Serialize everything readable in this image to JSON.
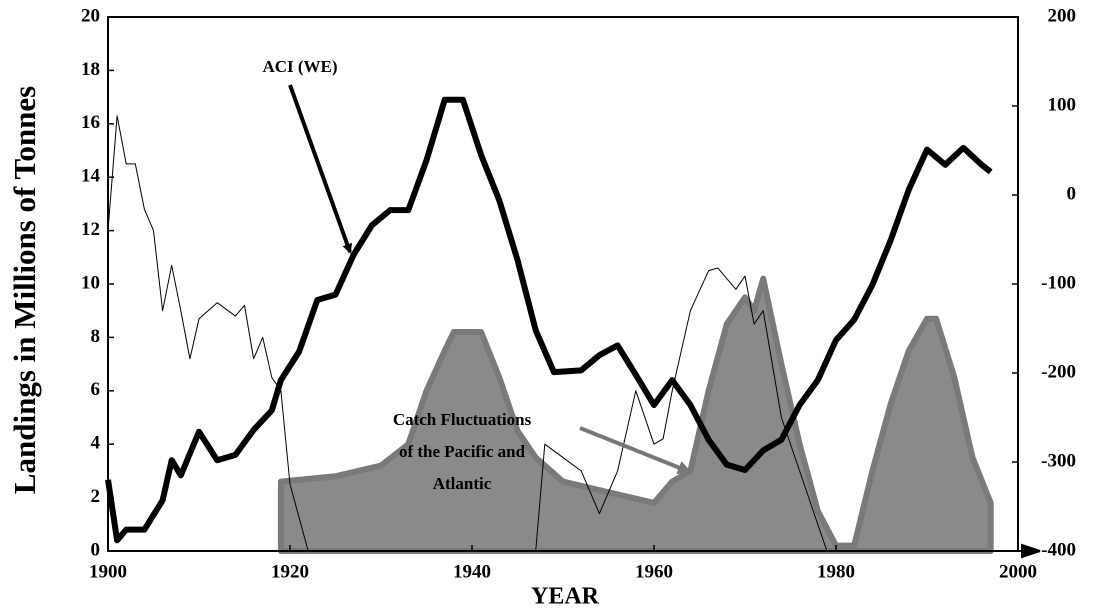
{
  "chart_data": {
    "type": "line",
    "xlabel": "YEAR",
    "ylabel": "Landings in Millions of Tonnes",
    "xlim": [
      1900,
      2000
    ],
    "xticks": [
      1900,
      1920,
      1940,
      1960,
      1980,
      2000
    ],
    "ylim": [
      0,
      20
    ],
    "yticks": [
      0,
      2,
      4,
      6,
      8,
      10,
      12,
      14,
      16,
      18,
      20
    ],
    "y2lim": [
      -400,
      200
    ],
    "y2ticks": [
      200,
      100,
      0,
      -100,
      -200,
      -300,
      -400
    ],
    "grid": false,
    "annotations": [
      [
        "ACI (WE)"
      ],
      [
        "Catch Fluctuations",
        "of the Pacific and",
        "Atlantic"
      ]
    ],
    "series": [
      {
        "type": "area",
        "color": "#8a8a8a",
        "x": [
          1919,
          1925,
          1930,
          1933,
          1935,
          1937,
          1938,
          1941,
          1943,
          1945,
          1947,
          1950,
          1955,
          1960,
          1962,
          1964,
          1966,
          1968,
          1970,
          1971,
          1972,
          1974,
          1976,
          1978,
          1980,
          1982,
          1984,
          1986,
          1988,
          1990,
          1991,
          1993,
          1995,
          1997
        ],
        "values": [
          2.6,
          2.8,
          3.2,
          4,
          6,
          7.5,
          8.2,
          8.2,
          6.5,
          4.5,
          3.5,
          2.6,
          2.2,
          1.8,
          2.6,
          3,
          6,
          8.5,
          9.5,
          9,
          10.2,
          7,
          4,
          1.5,
          0.2,
          0.2,
          3,
          5.5,
          7.5,
          8.7,
          8.7,
          6.5,
          3.5,
          1.8
        ]
      },
      {
        "type": "line",
        "color": "#000000",
        "width": 1,
        "x": [
          1900,
          1901,
          1902,
          1903,
          1904,
          1905,
          1906,
          1907,
          1908,
          1909,
          1910,
          1912,
          1914,
          1915,
          1916,
          1917,
          1918,
          1919,
          1920,
          1922,
          1935,
          1947,
          1948,
          1950,
          1952,
          1954,
          1956,
          1958,
          1960,
          1961,
          1962,
          1964,
          1966,
          1967,
          1969,
          1970,
          1971,
          1972,
          1974,
          1976,
          1978,
          1979
        ],
        "values": [
          12,
          16.3,
          14.5,
          14.5,
          12.8,
          12,
          9,
          10.7,
          9,
          7.2,
          8.7,
          9.3,
          8.8,
          9.2,
          7.2,
          8,
          6.5,
          6,
          2.5,
          0,
          null,
          0,
          4,
          3.5,
          3,
          1.4,
          3,
          6,
          4,
          4.2,
          6,
          9,
          10.5,
          10.6,
          9.8,
          10.3,
          8.5,
          9,
          5,
          3,
          1,
          0
        ]
      },
      {
        "type": "line",
        "color": "#000000",
        "width": 6,
        "axis": "y2",
        "x": [
          1900,
          1901,
          1902,
          1904,
          1906,
          1907,
          1908,
          1910,
          1912,
          1914,
          1916,
          1918,
          1919,
          1921,
          1923,
          1925,
          1927,
          1929,
          1931,
          1933,
          1935,
          1937,
          1939,
          1941,
          1943,
          1945,
          1947,
          1949,
          1952,
          1954,
          1956,
          1958,
          1960,
          1962,
          1964,
          1966,
          1968,
          1970,
          1972,
          1974,
          1976,
          1978,
          1980,
          1982,
          1984,
          1986,
          1988,
          1990,
          1992,
          1994,
          1996,
          1997
        ],
        "values": [
          -320,
          -388,
          -376,
          -376,
          -343,
          -298,
          -315,
          -266,
          -298,
          -292,
          -264,
          -242,
          -208,
          -176,
          -118,
          -112,
          -67,
          -34,
          -17,
          -17,
          39,
          107,
          107,
          45,
          -6,
          -73,
          -152,
          -199,
          -197,
          -180,
          -169,
          -202,
          -236,
          -208,
          -236,
          -275,
          -303,
          -309,
          -287,
          -275,
          -236,
          -208,
          -163,
          -140,
          -101,
          -51,
          6,
          51,
          34,
          53,
          34,
          26
        ]
      }
    ]
  }
}
